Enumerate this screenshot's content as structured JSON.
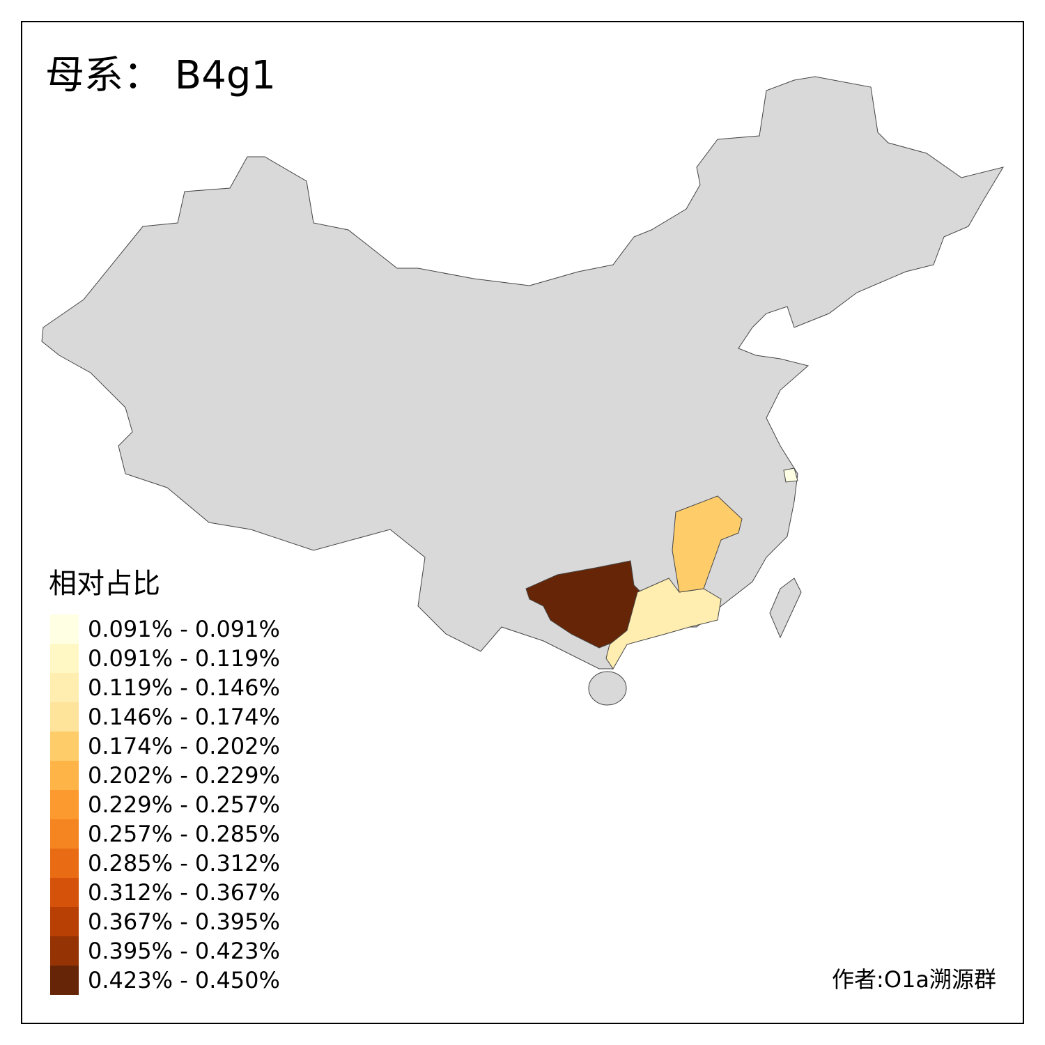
{
  "title": "母系： B4g1",
  "legend": {
    "title": "相对占比",
    "items": [
      {
        "label": "0.091% - 0.091%",
        "color": "#ffffe4"
      },
      {
        "label": "0.091% - 0.119%",
        "color": "#fff8c4"
      },
      {
        "label": "0.119% - 0.146%",
        "color": "#ffeeb0"
      },
      {
        "label": "0.146% - 0.174%",
        "color": "#fee39b"
      },
      {
        "label": "0.174% - 0.202%",
        "color": "#fecd6a"
      },
      {
        "label": "0.202% - 0.229%",
        "color": "#feb446"
      },
      {
        "label": "0.229% - 0.257%",
        "color": "#fd9a2f"
      },
      {
        "label": "0.257% - 0.285%",
        "color": "#f58521"
      },
      {
        "label": "0.285% - 0.312%",
        "color": "#e96c15"
      },
      {
        "label": "0.312% - 0.367%",
        "color": "#d5520a"
      },
      {
        "label": "0.367% - 0.395%",
        "color": "#b84005"
      },
      {
        "label": "0.395% - 0.423%",
        "color": "#953304"
      },
      {
        "label": "0.423% - 0.450%",
        "color": "#662506"
      }
    ]
  },
  "author": "作者:O1a溯源群"
}
